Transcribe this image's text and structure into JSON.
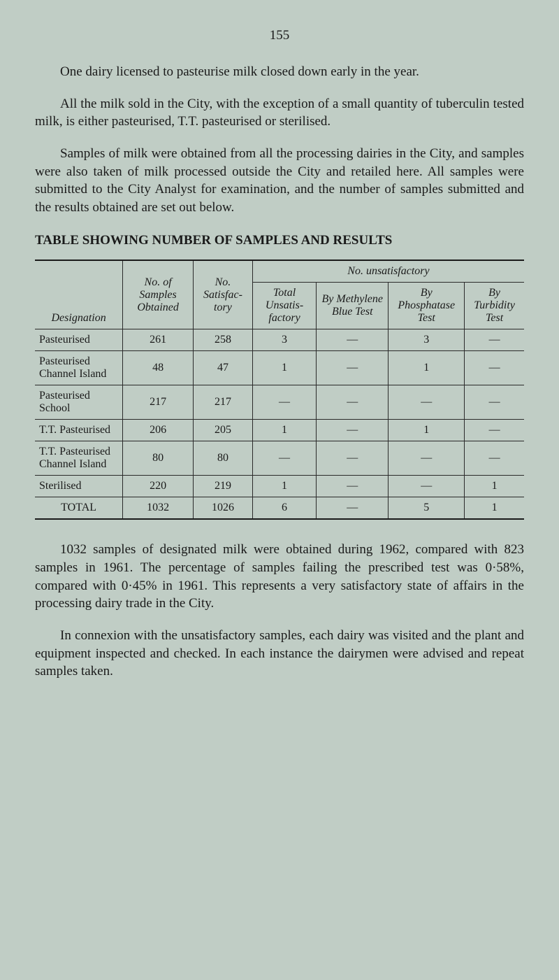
{
  "page_number": "155",
  "para1": "One dairy licensed to pasteurise milk closed down early in the year.",
  "para2": "All the milk sold in the City, with the exception of a small quantity of tuberculin tested milk, is either pasteurised, T.T. pasteurised or sterilised.",
  "para3": "Samples of milk were obtained from all the processing dairies in the City, and samples were also taken of milk processed outside the City and retailed here. All samples were submitted to the City Analyst for examination, and the number of samples submitted and the results obtained are set out below.",
  "table_heading": "TABLE SHOWING NUMBER OF SAMPLES AND RESULTS",
  "table": {
    "header": {
      "designation": "Designation",
      "samples": "No. of Samples Obtained",
      "satisfactory": "No. Satisfac- tory",
      "unsat_group": "No. unsatisfactory",
      "total_unsat": "Total Unsatis- factory",
      "by_methylene": "By Methylene Blue Test",
      "by_phosphatase": "By Phosphatase Test",
      "by_turbidity": "By Turbidity Test"
    },
    "rows": [
      {
        "designation": "Pasteurised",
        "samples": "261",
        "satisfactory": "258",
        "total_unsat": "3",
        "methylene": "—",
        "phosphatase": "3",
        "turbidity": "—"
      },
      {
        "designation": "Pasteurised Channel Island",
        "samples": "48",
        "satisfactory": "47",
        "total_unsat": "1",
        "methylene": "—",
        "phosphatase": "1",
        "turbidity": "—"
      },
      {
        "designation": "Pasteurised School",
        "samples": "217",
        "satisfactory": "217",
        "total_unsat": "—",
        "methylene": "—",
        "phosphatase": "—",
        "turbidity": "—"
      },
      {
        "designation": "T.T. Pasteurised",
        "samples": "206",
        "satisfactory": "205",
        "total_unsat": "1",
        "methylene": "—",
        "phosphatase": "1",
        "turbidity": "—"
      },
      {
        "designation": "T.T. Pasteurised Channel Island",
        "samples": "80",
        "satisfactory": "80",
        "total_unsat": "—",
        "methylene": "—",
        "phosphatase": "—",
        "turbidity": "—"
      },
      {
        "designation": "Sterilised",
        "samples": "220",
        "satisfactory": "219",
        "total_unsat": "1",
        "methylene": "—",
        "phosphatase": "—",
        "turbidity": "1"
      }
    ],
    "total": {
      "label": "TOTAL",
      "samples": "1032",
      "satisfactory": "1026",
      "total_unsat": "6",
      "methylene": "—",
      "phosphatase": "5",
      "turbidity": "1"
    }
  },
  "para4": "1032 samples of designated milk were obtained during 1962, compared with 823 samples in 1961. The percentage of samples failing the prescribed test was 0·58%, compared with 0·45% in 1961. This represents a very satisfactory state of affairs in the processing dairy trade in the City.",
  "para5": "In connexion with the unsatisfactory samples, each dairy was visited and the plant and equipment inspected and checked. In each instance the dairymen were advised and repeat samples taken.",
  "style": {
    "background_color": "#c0cdc5",
    "text_color": "#1a1a1a",
    "body_fontsize": 19,
    "table_fontsize": 16
  }
}
